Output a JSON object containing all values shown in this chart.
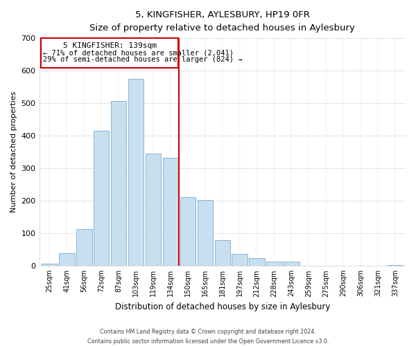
{
  "title": "5, KINGFISHER, AYLESBURY, HP19 0FR",
  "subtitle": "Size of property relative to detached houses in Aylesbury",
  "xlabel": "Distribution of detached houses by size in Aylesbury",
  "ylabel": "Number of detached properties",
  "bar_labels": [
    "25sqm",
    "41sqm",
    "56sqm",
    "72sqm",
    "87sqm",
    "103sqm",
    "119sqm",
    "134sqm",
    "150sqm",
    "165sqm",
    "181sqm",
    "197sqm",
    "212sqm",
    "228sqm",
    "243sqm",
    "259sqm",
    "275sqm",
    "290sqm",
    "306sqm",
    "321sqm",
    "337sqm"
  ],
  "bar_values": [
    8,
    38,
    113,
    415,
    507,
    575,
    345,
    333,
    212,
    202,
    80,
    37,
    25,
    13,
    13,
    0,
    0,
    0,
    0,
    0,
    3
  ],
  "bar_color": "#c8dff0",
  "bar_edge_color": "#8ab4d0",
  "vline_color": "#cc0000",
  "annotation_title": "5 KINGFISHER: 139sqm",
  "annotation_line1": "← 71% of detached houses are smaller (2,041)",
  "annotation_line2": "29% of semi-detached houses are larger (824) →",
  "annotation_box_edge": "#cc0000",
  "ylim": [
    0,
    700
  ],
  "yticks": [
    0,
    100,
    200,
    300,
    400,
    500,
    600,
    700
  ],
  "footer1": "Contains HM Land Registry data © Crown copyright and database right 2024.",
  "footer2": "Contains public sector information licensed under the Open Government Licence v3.0."
}
